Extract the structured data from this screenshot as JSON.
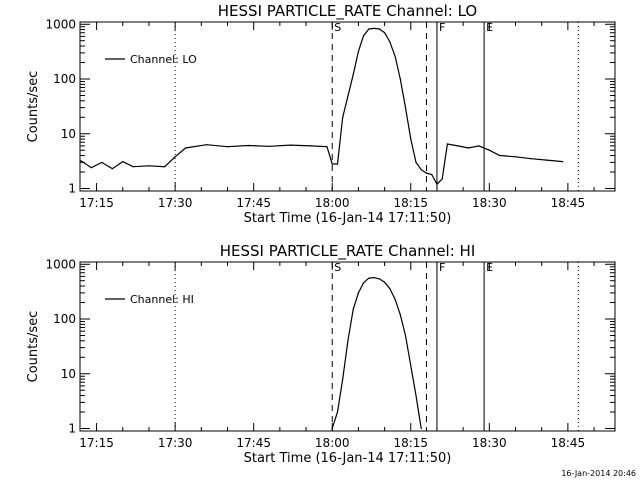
{
  "chart_data": [
    {
      "type": "line",
      "title": "HESSI PARTICLE_RATE Channel: LO",
      "xlabel": "Start Time (16-Jan-14 17:11:50)",
      "ylabel": "Counts/sec",
      "yscale": "log",
      "ylim": [
        0.9,
        1100
      ],
      "xlim": [
        "17:11:50",
        "18:54:00"
      ],
      "x_ticks": [
        "17:15",
        "17:30",
        "17:45",
        "18:00",
        "18:15",
        "18:30",
        "18:45"
      ],
      "y_ticks": [
        "1",
        "10",
        "100",
        "1000"
      ],
      "legend": "top-left",
      "series": [
        {
          "name": "Channel: LO",
          "x": [
            "17:12",
            "17:14",
            "17:16",
            "17:18",
            "17:20",
            "17:22",
            "17:25",
            "17:28",
            "17:30",
            "17:32",
            "17:36",
            "17:40",
            "17:44",
            "17:48",
            "17:52",
            "17:56",
            "17:59",
            "18:00",
            "18:01",
            "18:02",
            "18:04",
            "18:05",
            "18:06",
            "18:07",
            "18:08",
            "18:09",
            "18:10",
            "18:11",
            "18:12",
            "18:13",
            "18:14",
            "18:15",
            "18:16",
            "18:17",
            "18:18",
            "18:19",
            "18:20",
            "18:21",
            "18:22",
            "18:24",
            "18:26",
            "18:28",
            "18:30",
            "18:32",
            "18:35",
            "18:38",
            "18:41",
            "18:44"
          ],
          "values": [
            3.2,
            2.4,
            3.0,
            2.3,
            3.1,
            2.5,
            2.6,
            2.5,
            3.8,
            5.5,
            6.3,
            5.8,
            6.1,
            5.9,
            6.2,
            6.0,
            5.8,
            2.8,
            2.8,
            20,
            120,
            320,
            620,
            820,
            840,
            820,
            700,
            480,
            260,
            100,
            30,
            8,
            3,
            2.2,
            1.9,
            1.8,
            1.2,
            1.5,
            6.5,
            6.0,
            5.5,
            6.0,
            5.0,
            4.0,
            3.8,
            3.5,
            3.3,
            3.1
          ]
        }
      ],
      "vlines": [
        {
          "x": "17:30",
          "style": "dotted",
          "label": ""
        },
        {
          "x": "18:00",
          "style": "dashed",
          "label": "S"
        },
        {
          "x": "18:18",
          "style": "dashed",
          "label": ""
        },
        {
          "x": "18:20",
          "style": "solid",
          "label": "F"
        },
        {
          "x": "18:29",
          "style": "solid",
          "label": "E"
        },
        {
          "x": "18:47",
          "style": "dotted",
          "label": ""
        }
      ]
    },
    {
      "type": "line",
      "title": "HESSI PARTICLE_RATE Channel: HI",
      "xlabel": "Start Time (16-Jan-14 17:11:50)",
      "ylabel": "Counts/sec",
      "yscale": "log",
      "ylim": [
        0.9,
        1100
      ],
      "xlim": [
        "17:11:50",
        "18:54:00"
      ],
      "x_ticks": [
        "17:15",
        "17:30",
        "17:45",
        "18:00",
        "18:15",
        "18:30",
        "18:45"
      ],
      "y_ticks": [
        "1",
        "10",
        "100",
        "1000"
      ],
      "legend": "top-left",
      "series": [
        {
          "name": "Channel: HI",
          "x": [
            "18:00",
            "18:01",
            "18:02",
            "18:03",
            "18:04",
            "18:05",
            "18:06",
            "18:07",
            "18:08",
            "18:09",
            "18:10",
            "18:11",
            "18:12",
            "18:13",
            "18:14",
            "18:15",
            "18:16",
            "18:17"
          ],
          "values": [
            1,
            2,
            8,
            40,
            150,
            300,
            460,
            560,
            570,
            540,
            470,
            360,
            230,
            120,
            50,
            14,
            4,
            1
          ]
        }
      ],
      "vlines": [
        {
          "x": "17:30",
          "style": "dotted",
          "label": ""
        },
        {
          "x": "18:00",
          "style": "dashed",
          "label": "S"
        },
        {
          "x": "18:18",
          "style": "dashed",
          "label": ""
        },
        {
          "x": "18:20",
          "style": "solid",
          "label": "F"
        },
        {
          "x": "18:29",
          "style": "solid",
          "label": "E"
        },
        {
          "x": "18:47",
          "style": "dotted",
          "label": ""
        }
      ]
    }
  ],
  "footer": {
    "timestamp": "16-Jan-2014 20:46"
  }
}
